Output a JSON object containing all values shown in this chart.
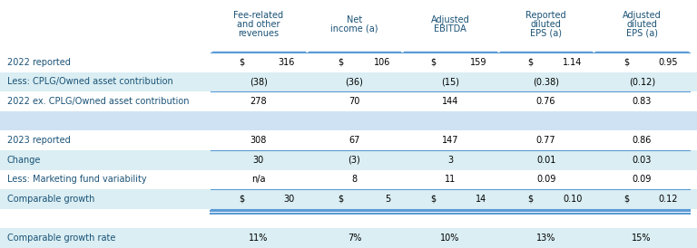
{
  "col_headers": [
    [
      "Fee-related",
      "and other",
      "revenues"
    ],
    [
      "Net",
      "income (a)"
    ],
    [
      "Adjusted",
      "EBITDA"
    ],
    [
      "Reported",
      "diluted",
      "EPS (a)"
    ],
    [
      "Adjusted",
      "diluted",
      "EPS (a)"
    ]
  ],
  "rows": [
    {
      "label": "2022 reported",
      "dollar_cols": [
        0,
        1,
        2,
        3,
        4
      ],
      "dollar_vals": [
        "$",
        "$",
        "$",
        "$",
        "$"
      ],
      "values": [
        "316",
        "106",
        "159",
        "1.14",
        "0.95"
      ],
      "bg": "#ffffff",
      "top_border": true,
      "bottom_border": false
    },
    {
      "label": "Less: CPLG/Owned asset contribution",
      "dollar_cols": [],
      "dollar_vals": [],
      "values": [
        "(38)",
        "(36)",
        "(15)",
        "(0.38)",
        "(0.12)"
      ],
      "bg": "#daeef3",
      "top_border": false,
      "bottom_border": true
    },
    {
      "label": "2022 ex. CPLG/Owned asset contribution",
      "dollar_cols": [],
      "dollar_vals": [],
      "values": [
        "278",
        "70",
        "144",
        "0.76",
        "0.83"
      ],
      "bg": "#ffffff",
      "top_border": false,
      "bottom_border": false
    },
    {
      "label": "",
      "dollar_cols": [],
      "dollar_vals": [],
      "values": [
        "",
        "",
        "",
        "",
        ""
      ],
      "bg": "#cfe2f3",
      "top_border": false,
      "bottom_border": false
    },
    {
      "label": "2023 reported",
      "dollar_cols": [],
      "dollar_vals": [],
      "values": [
        "308",
        "67",
        "147",
        "0.77",
        "0.86"
      ],
      "bg": "#ffffff",
      "top_border": false,
      "bottom_border": false
    },
    {
      "label": "Change",
      "dollar_cols": [],
      "dollar_vals": [],
      "values": [
        "30",
        "(3)",
        "3",
        "0.01",
        "0.03"
      ],
      "bg": "#daeef3",
      "top_border": true,
      "bottom_border": false
    },
    {
      "label": "Less: Marketing fund variability",
      "dollar_cols": [],
      "dollar_vals": [],
      "values": [
        "n/a",
        "8",
        "11",
        "0.09",
        "0.09"
      ],
      "bg": "#ffffff",
      "top_border": false,
      "bottom_border": false
    },
    {
      "label": "Comparable growth",
      "dollar_cols": [
        0,
        1,
        2,
        3,
        4
      ],
      "dollar_vals": [
        "$",
        "$",
        "$",
        "$",
        "$"
      ],
      "values": [
        "30",
        "5",
        "14",
        "0.10",
        "0.12"
      ],
      "bg": "#daeef3",
      "top_border": true,
      "bottom_border": true,
      "double_bottom": true
    },
    {
      "label": "",
      "dollar_cols": [],
      "dollar_vals": [],
      "values": [
        "",
        "",
        "",
        "",
        ""
      ],
      "bg": "#ffffff",
      "top_border": false,
      "bottom_border": false
    },
    {
      "label": "Comparable growth rate",
      "dollar_cols": [],
      "dollar_vals": [],
      "values": [
        "11%",
        "7%",
        "10%",
        "13%",
        "15%"
      ],
      "bg": "#daeef3",
      "top_border": false,
      "bottom_border": false
    }
  ],
  "font_size": 7.0,
  "header_font_size": 7.0,
  "text_color": "#1a5276",
  "label_color": "#1a5276",
  "border_color": "#5b9bd5",
  "bg_blue": "#daeef3",
  "bg_white": "#ffffff"
}
